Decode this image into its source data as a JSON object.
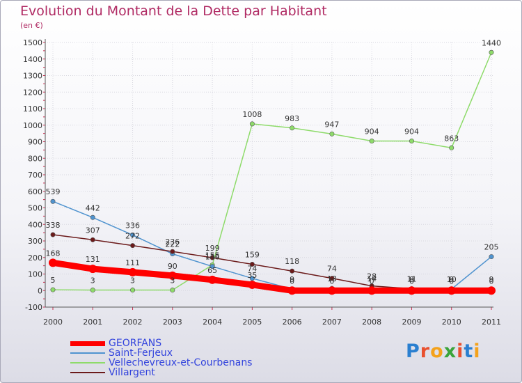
{
  "chart_data": {
    "type": "line",
    "title": "Evolution du Montant de la Dette par Habitant",
    "subtitle": "(en €)",
    "xlabel": "",
    "ylabel": "",
    "x": [
      "2000",
      "2001",
      "2002",
      "2003",
      "2004",
      "2005",
      "2006",
      "2007",
      "2008",
      "2009",
      "2010",
      "2011"
    ],
    "ylim": [
      -100,
      1500
    ],
    "yticks": [
      "-100",
      "0",
      "100",
      "200",
      "300",
      "400",
      "500",
      "600",
      "700",
      "800",
      "900",
      "1000",
      "1100",
      "1200",
      "1300",
      "1400",
      "1500"
    ],
    "legend_position": "bottom-left",
    "series": [
      {
        "name": "GEORFANS",
        "color": "#ff0000",
        "values": [
          168,
          131,
          111,
          90,
          65,
          35,
          0,
          0,
          0,
          0,
          0,
          0
        ],
        "labels": [
          "168",
          "131",
          "111",
          "90",
          "65",
          "35",
          "0",
          "0",
          "0",
          "0",
          "0",
          "0"
        ]
      },
      {
        "name": "Saint-Ferjeux",
        "color": "#4f93cf",
        "values": [
          539,
          442,
          336,
          222,
          146,
          74,
          9,
          13,
          14,
          9,
          9,
          205
        ],
        "labels": [
          "539",
          "442",
          "336",
          "222",
          "146",
          "74",
          "9",
          "13",
          "14",
          "9",
          "9",
          "205"
        ]
      },
      {
        "name": "Vellechevreux-et-Courbenans",
        "color": "#8edb6a",
        "values": [
          5,
          3,
          3,
          3,
          155,
          1008,
          983,
          947,
          904,
          904,
          863,
          1440
        ],
        "labels": [
          "5",
          "3",
          "3",
          "3",
          "155",
          "1008",
          "983",
          "947",
          "904",
          "904",
          "863",
          "1440"
        ]
      },
      {
        "name": "Villargent",
        "color": "#6b1a1a",
        "values": [
          338,
          307,
          272,
          236,
          199,
          159,
          118,
          74,
          28,
          11,
          10,
          9
        ],
        "labels": [
          "338",
          "307",
          "272",
          "236",
          "199",
          "159",
          "118",
          "74",
          "28",
          "11",
          "10",
          "9"
        ]
      }
    ]
  },
  "logo": {
    "text": "Proxiti",
    "letters": [
      "P",
      "r",
      "o",
      "x",
      "i",
      "t",
      "i"
    ],
    "colors": [
      "#2a7fd0",
      "#e9502e",
      "#f4a21b",
      "#3aa43a",
      "#e9502e",
      "#2a7fd0",
      "#f4a21b"
    ]
  }
}
